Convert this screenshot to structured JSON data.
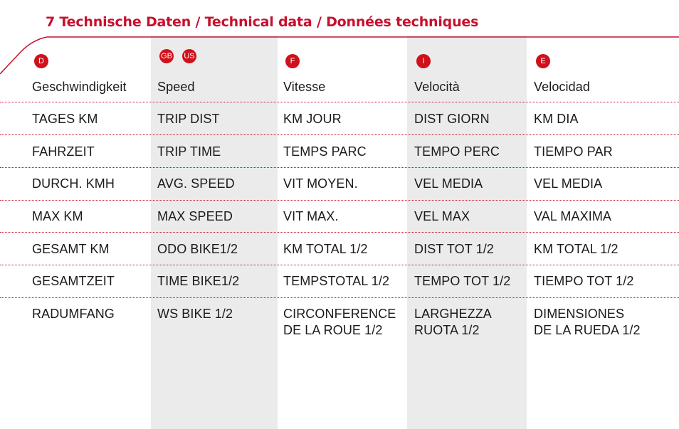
{
  "title": "7 Technische Daten / Technical data / Données techniques",
  "columns": [
    {
      "badges": [
        "D"
      ],
      "header": "Geschwindigkeit"
    },
    {
      "badges": [
        "GB",
        "US"
      ],
      "header": "Speed"
    },
    {
      "badges": [
        "F"
      ],
      "header": "Vitesse"
    },
    {
      "badges": [
        "I"
      ],
      "header": "Velocità"
    },
    {
      "badges": [
        "E"
      ],
      "header": "Velocidad"
    }
  ],
  "rows": [
    [
      "TAGES KM",
      "TRIP DIST",
      "KM JOUR",
      "DIST GIORN",
      "KM DIA"
    ],
    [
      "FAHRZEIT",
      "TRIP TIME",
      "TEMPS PARC",
      "TEMPO PERC",
      "TIEMPO PAR"
    ],
    [
      "DURCH. KMH",
      "AVG. SPEED",
      "VIT MOYEN.",
      "VEL MEDIA",
      "VEL MEDIA"
    ],
    [
      "MAX KM",
      "MAX SPEED",
      "VIT MAX.",
      "VEL MAX",
      "VAL MAXIMA"
    ],
    [
      "GESAMT KM",
      "ODO BIKE1/2",
      "KM TOTAL 1/2",
      "DIST TOT 1/2",
      "KM TOTAL 1/2"
    ],
    [
      "GESAMTZEIT",
      "TIME BIKE1/2",
      "TEMPSTOTAL 1/2",
      "TEMPO TOT 1/2",
      "TIEMPO TOT 1/2"
    ],
    [
      [
        "RADUMFANG"
      ],
      [
        "WS BIKE 1/2"
      ],
      [
        "CIRCONFERENCE",
        "DE LA ROUE 1/2"
      ],
      [
        "LARGHEZZA",
        "RUOTA 1/2"
      ],
      [
        "DIMENSIONES",
        "DE LA RUEDA 1/2"
      ]
    ]
  ],
  "colors": {
    "accent": "#c8102e",
    "column_shade": "#ebebeb"
  }
}
